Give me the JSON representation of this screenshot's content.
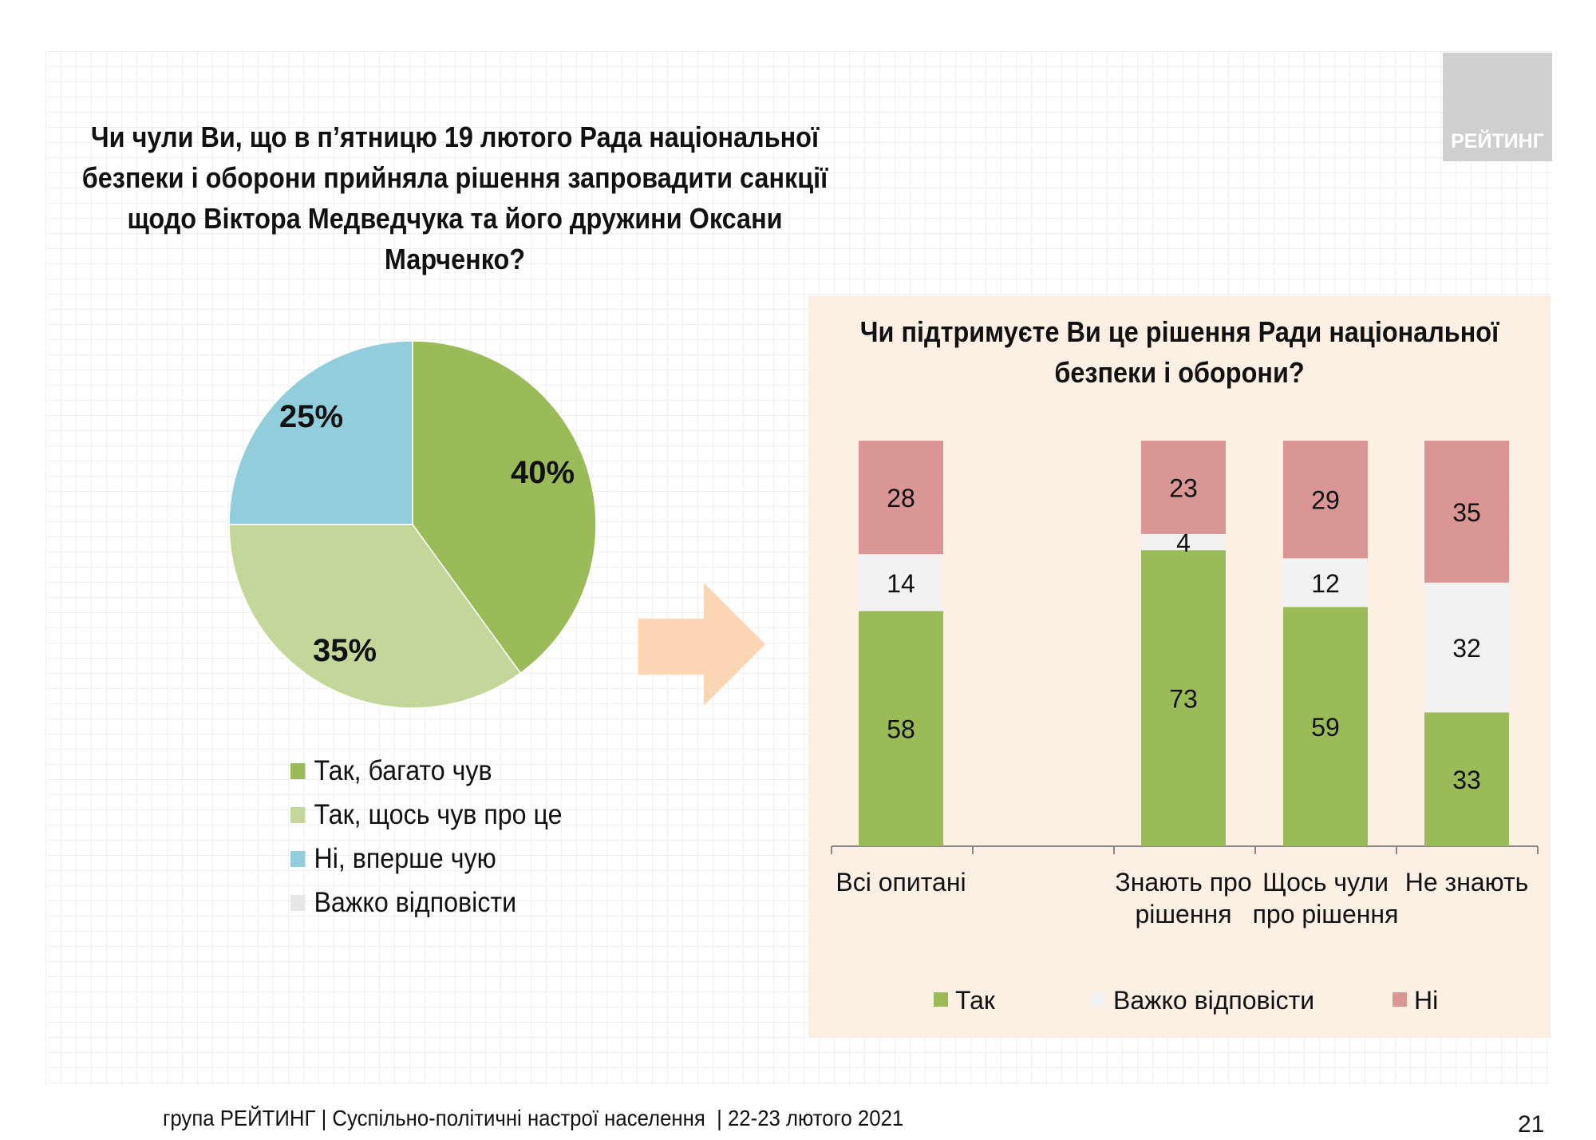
{
  "logo": {
    "text": "РЕЙТИНГ"
  },
  "footer": {
    "text": "група РЕЙТИНГ | Суспільно-політичні настрої населення  | 22-23 лютого 2021",
    "page_number": "21"
  },
  "colors": {
    "dark_green": "#9bbb59",
    "light_green": "#c4d79b",
    "blue": "#92cddc",
    "light_gray": "#f2f2f2",
    "pink": "#d99694",
    "arrow": "#fcd5b5",
    "panel": "#fcece0"
  },
  "chart_data": [
    {
      "type": "pie",
      "title": "Чи чули Ви, що в п’ятницю 19 лютого Рада національної безпеки і оборони прийняла рішення запровадити санкції щодо Віктора Медведчука та його дружини Оксани Марченко?",
      "title_lines": [
        "Чи чули Ви, що в п’ятницю 19 лютого Рада національної",
        "безпеки і оборони прийняла рішення запровадити санкції",
        "щодо Віктора Медведчука та його дружини Оксани",
        "Марченко?"
      ],
      "slices": [
        {
          "name": "Так, багато чув",
          "value": 40,
          "label": "40%",
          "color": "#9bbb59"
        },
        {
          "name": "Так, щось чув про це",
          "value": 35,
          "label": "35%",
          "color": "#c4d79b"
        },
        {
          "name": "Ні, вперше чую",
          "value": 25,
          "label": "25%",
          "color": "#92cddc"
        },
        {
          "name": "Важко відповісти",
          "value": 0,
          "label": "",
          "color": "#f2f2f2"
        }
      ],
      "legend_position": "bottom"
    },
    {
      "type": "bar",
      "stacked": true,
      "title_lines": [
        "Чи підтримуєте Ви це рішення Ради національної",
        "безпеки і оборони?"
      ],
      "categories": [
        [
          "Всі опитані"
        ],
        [
          ""
        ],
        [
          "Знають про",
          "рішення"
        ],
        [
          "Щось чули",
          "про рішення"
        ],
        [
          "Не знають"
        ]
      ],
      "series": [
        {
          "name": "Так",
          "color": "#9bbb59",
          "values": [
            58,
            null,
            73,
            59,
            33
          ]
        },
        {
          "name": "Важко відповісти",
          "color": "#f2f2f2",
          "values": [
            14,
            null,
            4,
            12,
            32
          ]
        },
        {
          "name": "Ні",
          "color": "#d99694",
          "values": [
            28,
            null,
            23,
            29,
            35
          ]
        }
      ],
      "ylim": [
        0,
        100
      ],
      "grid": false,
      "legend_position": "bottom"
    }
  ]
}
